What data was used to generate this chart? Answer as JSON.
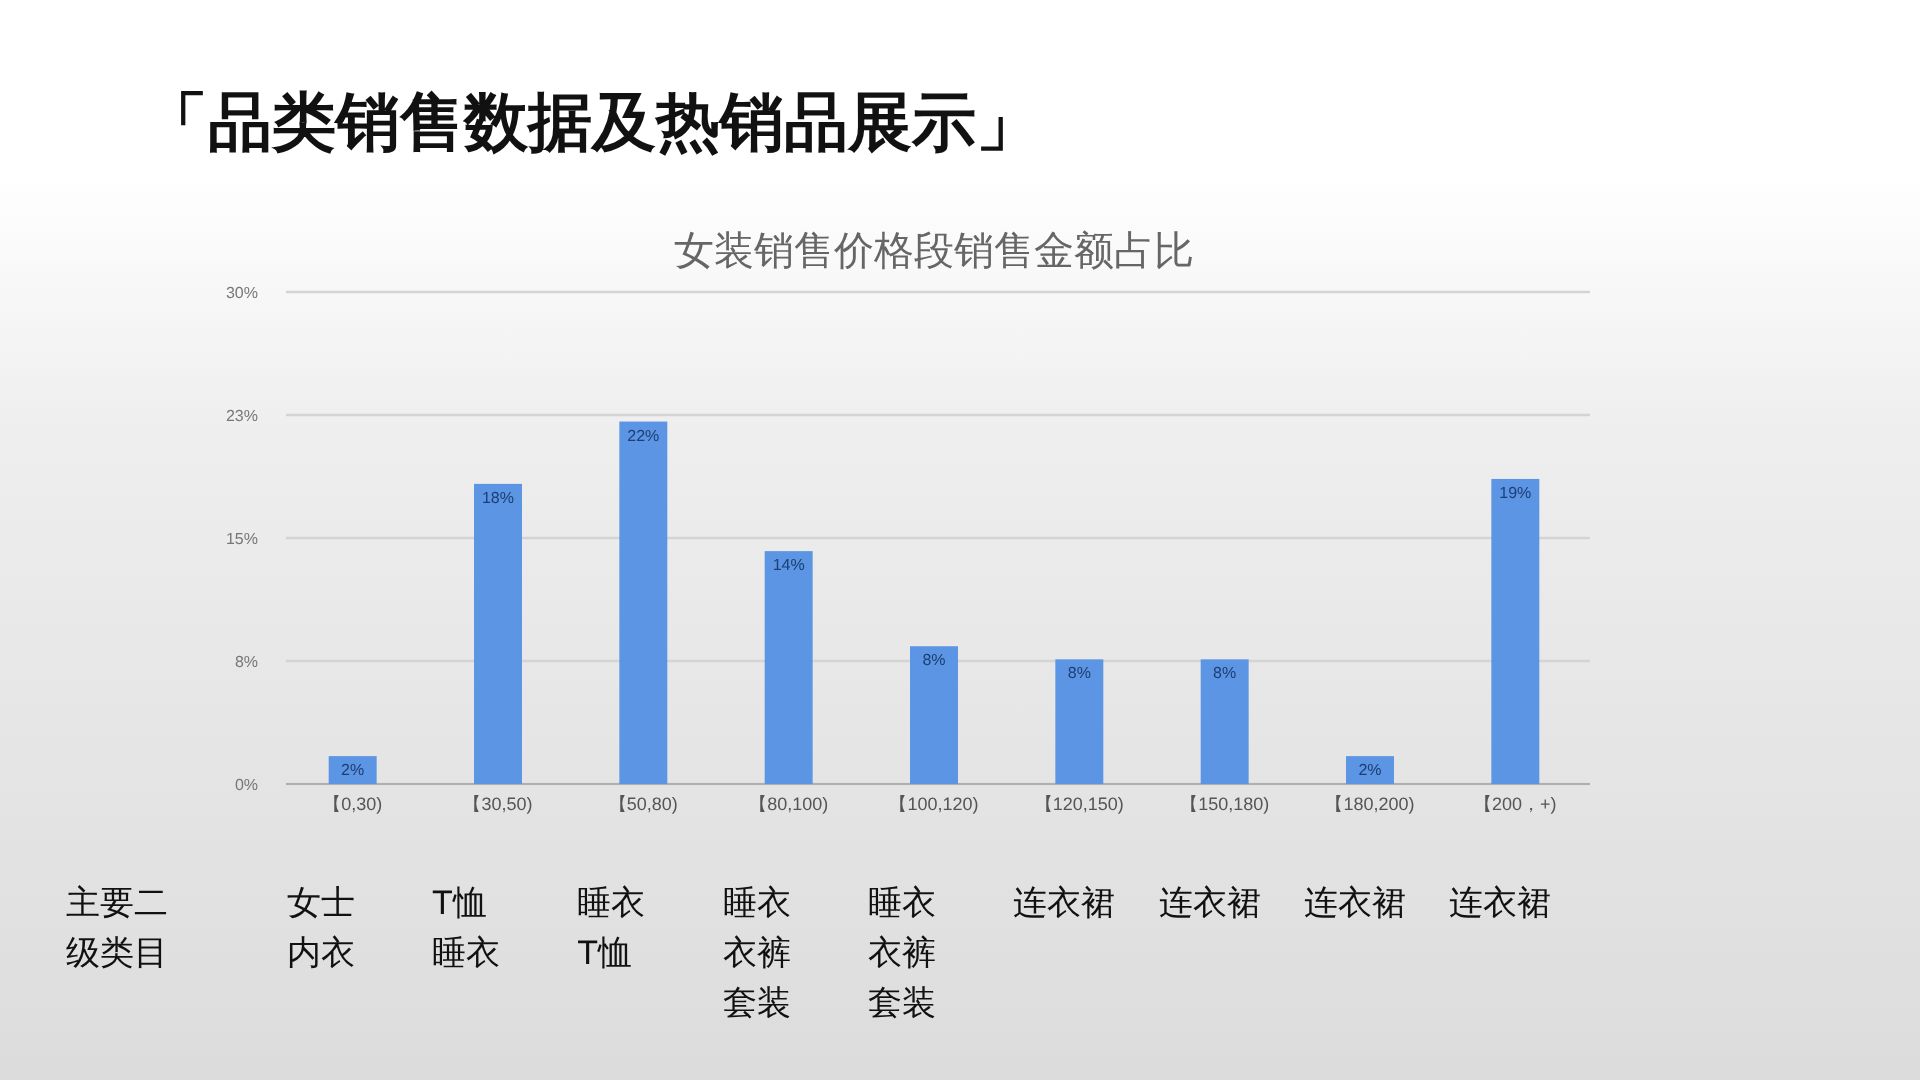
{
  "chart_data": {
    "type": "bar",
    "title": "「品类销售数据及热销品展示」",
    "subtitle": "女装销售价格段销售金额占比",
    "categories": [
      "【0,30)",
      "【30,50)",
      "【50,80)",
      "【80,100)",
      "【100,120)",
      "【120,150)",
      "【150,180)",
      "【180,200)",
      "【200，+)"
    ],
    "values": [
      1.7,
      18.3,
      22.1,
      14.2,
      8.4,
      7.6,
      7.6,
      1.7,
      18.6
    ],
    "value_labels": [
      "2%",
      "18%",
      "22%",
      "14%",
      "8%",
      "8%",
      "8%",
      "2%",
      "19%"
    ],
    "color": "#5b95e3",
    "ylim": [
      0,
      30
    ],
    "yticks": [
      {
        "value": 0,
        "label": "0%"
      },
      {
        "value": 7.5,
        "label": "8%"
      },
      {
        "value": 15,
        "label": "15%"
      },
      {
        "value": 22.5,
        "label": "23%"
      },
      {
        "value": 30,
        "label": "30%"
      }
    ],
    "grid": "y",
    "annotations": [
      "主要二级类目",
      "女士内衣",
      "T恤睡衣",
      "睡衣T恤",
      "睡衣衣裤套装",
      "睡衣衣裤套装",
      "连衣裙",
      "连衣裙",
      "连衣裙",
      "连衣裙"
    ]
  }
}
